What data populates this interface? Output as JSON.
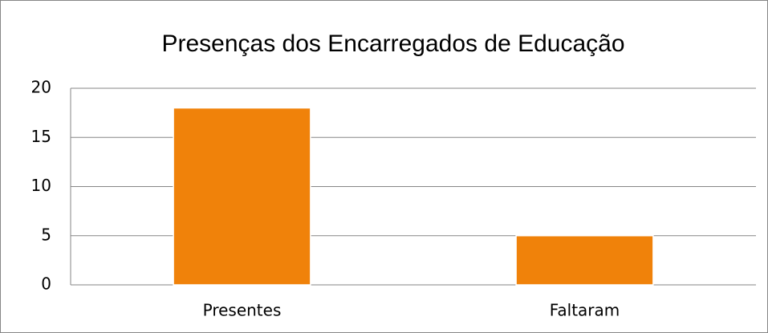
{
  "chart_data": {
    "type": "bar",
    "title": "Presenças dos Encarregados de Educação",
    "categories": [
      "Presentes",
      "Faltaram"
    ],
    "values": [
      18,
      5
    ],
    "color": "#f0820a",
    "ylim": [
      0,
      20
    ],
    "yticks": [
      0,
      5,
      10,
      15,
      20
    ],
    "grid": true
  }
}
